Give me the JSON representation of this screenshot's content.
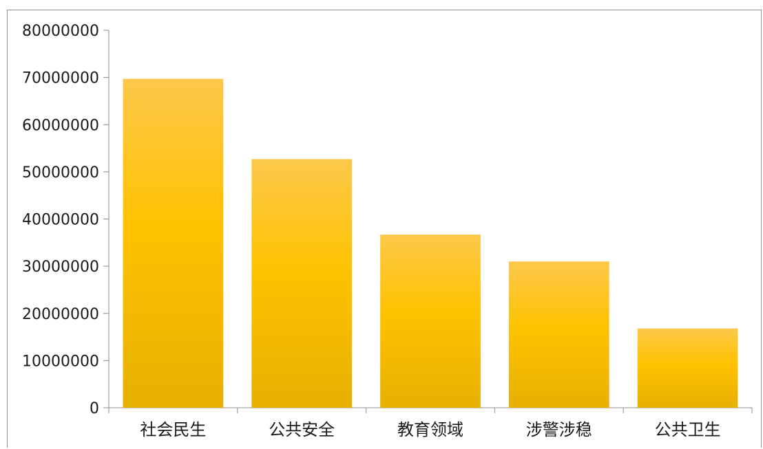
{
  "chart_data": {
    "type": "bar",
    "title": "",
    "xlabel": "",
    "ylabel": "",
    "categories": [
      "社会民生",
      "公共安全",
      "教育领域",
      "涉警涉稳",
      "公共卫生"
    ],
    "values": [
      69700000,
      52700000,
      36700000,
      31000000,
      16800000
    ],
    "ylim": [
      0,
      80000000
    ],
    "yticks": [
      0,
      10000000,
      20000000,
      30000000,
      40000000,
      50000000,
      60000000,
      70000000,
      80000000
    ],
    "ytick_labels": [
      "0",
      "10000000",
      "20000000",
      "30000000",
      "40000000",
      "50000000",
      "60000000",
      "70000000",
      "80000000"
    ],
    "grid": false,
    "legend": "none",
    "bar_color_top": "#fcc84a",
    "bar_color_mid": "#ffc200",
    "bar_color_bottom": "#e7b000",
    "axis_color": "#8c8c8c"
  }
}
